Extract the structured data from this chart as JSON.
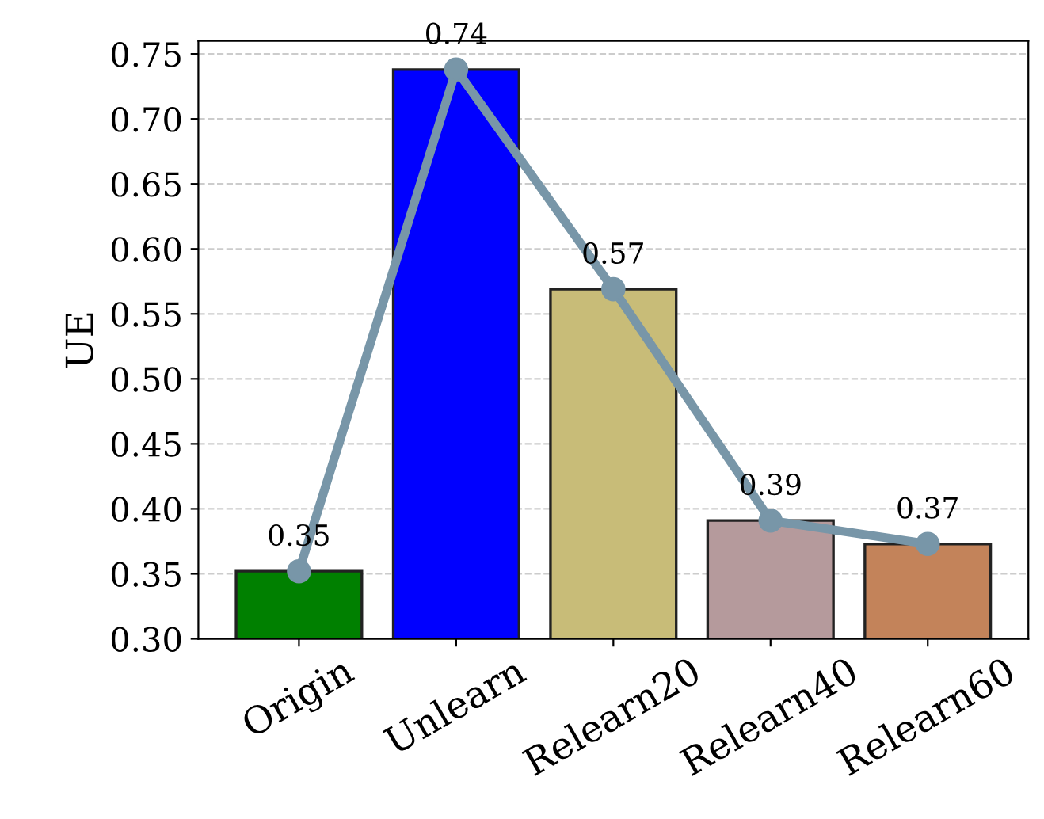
{
  "chart_data": {
    "type": "bar",
    "ylabel": "UE",
    "categories": [
      "Origin",
      "Unlearn",
      "Relearn20",
      "Relearn40",
      "Relearn60"
    ],
    "series": [
      {
        "values": [
          0.352,
          0.738,
          0.569,
          0.391,
          0.373
        ],
        "colors": [
          "#008000",
          "#0000ff",
          "#c8bc78",
          "#b59a9c",
          "#c3835a"
        ],
        "value_labels": [
          "0.35",
          "0.74",
          "0.57",
          "0.39",
          "0.37"
        ]
      },
      {
        "type": "line",
        "color": "#7896a8",
        "values": [
          0.352,
          0.738,
          0.569,
          0.391,
          0.373
        ],
        "marker": "circle",
        "line_style": "solid"
      }
    ],
    "ylim": [
      0.3,
      0.76
    ],
    "yticks": [
      {
        "value": 0.3,
        "label": "0.30"
      },
      0.35,
      {
        "value": 0.4,
        "label": "0.40"
      },
      0.45,
      {
        "value": 0.5,
        "label": "0.50"
      },
      0.55,
      {
        "value": 0.6,
        "label": "0.60"
      },
      0.65,
      {
        "value": 0.7,
        "label": "0.70"
      },
      0.75
    ],
    "grid": "y"
  }
}
